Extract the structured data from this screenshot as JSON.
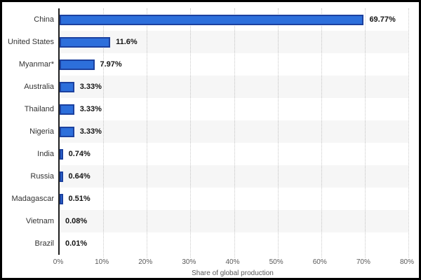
{
  "chart_data": {
    "type": "bar",
    "orientation": "horizontal",
    "title": "",
    "xlabel": "Share of global production",
    "ylabel": "",
    "categories": [
      "China",
      "United States",
      "Myanmar*",
      "Australia",
      "Thailand",
      "Nigeria",
      "India",
      "Russia",
      "Madagascar",
      "Vietnam",
      "Brazil"
    ],
    "values": [
      69.77,
      11.6,
      7.97,
      3.33,
      3.33,
      3.33,
      0.74,
      0.64,
      0.51,
      0.08,
      0.01
    ],
    "value_labels": [
      "69.77%",
      "11.6%",
      "7.97%",
      "3.33%",
      "3.33%",
      "3.33%",
      "0.74%",
      "0.64%",
      "0.51%",
      "0.08%",
      "0.01%"
    ],
    "x_ticks": [
      "0%",
      "10%",
      "20%",
      "30%",
      "40%",
      "50%",
      "60%",
      "70%",
      "80%"
    ],
    "xlim": [
      0,
      80
    ],
    "grid": "vertical-dotted",
    "legend_position": "none",
    "colors": {
      "bar_fill": "#2d6fdb",
      "bar_border": "#1c419f",
      "axis_line": "#1f1f1f",
      "gridline": "#c9c9c9",
      "row_stripe": "rgba(0,0,0,0.035)",
      "frame_border": "#000000",
      "label_text": "#333333",
      "value_text": "#141414",
      "tick_text": "#595959"
    }
  }
}
